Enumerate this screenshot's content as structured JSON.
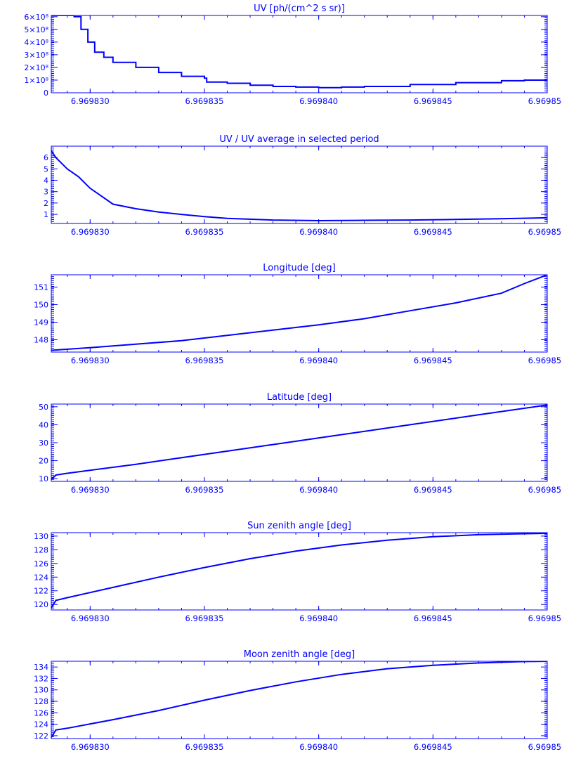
{
  "colors": {
    "line": "#0000ff",
    "background": "#ffffff"
  },
  "x_tick_labels": [
    "6.969830",
    "6.969835",
    "6.969840",
    "6.969845",
    "6.969850"
  ],
  "chart_data": [
    {
      "type": "line",
      "title": "UV [ph/(cm^2 s sr)]",
      "xlim": [
        6.9698283,
        6.96985
      ],
      "ylim": [
        0,
        610000000.0
      ],
      "ytick_values": [
        0,
        100000000.0,
        200000000.0,
        300000000.0,
        400000000.0,
        500000000.0,
        600000000.0
      ],
      "ytick_labels": [
        "0",
        "1×10⁸",
        "2×10⁸",
        "3×10⁸",
        "4×10⁸",
        "5×10⁸",
        "6×10⁸"
      ],
      "step": true,
      "series": [
        {
          "x": [
            6.9698283,
            6.9698293,
            6.9698296,
            6.9698299,
            6.9698302,
            6.9698306,
            6.969831,
            6.969832,
            6.969833,
            6.969834,
            6.969835,
            6.9698351,
            6.969836,
            6.969837,
            6.969838,
            6.969839,
            6.96984,
            6.969841,
            6.969842,
            6.969844,
            6.969846,
            6.969848,
            6.969849,
            6.96985
          ],
          "y": [
            610000000.0,
            600000000.0,
            500000000.0,
            400000000.0,
            320000000.0,
            280000000.0,
            240000000.0,
            200000000.0,
            160000000.0,
            130000000.0,
            115000000.0,
            85000000.0,
            75000000.0,
            60000000.0,
            50000000.0,
            45000000.0,
            40000000.0,
            45000000.0,
            50000000.0,
            65000000.0,
            80000000.0,
            95000000.0,
            100000000.0,
            110000000.0
          ]
        }
      ]
    },
    {
      "type": "line",
      "title": "UV / UV average in selected period",
      "xlim": [
        6.9698283,
        6.96985
      ],
      "ylim": [
        0.2,
        7
      ],
      "ytick_values": [
        1,
        2,
        3,
        4,
        5,
        6
      ],
      "ytick_labels": [
        "1",
        "2",
        "3",
        "4",
        "5",
        "6"
      ],
      "series": [
        {
          "x": [
            6.9698283,
            6.9698285,
            6.969829,
            6.9698295,
            6.96983,
            6.9698305,
            6.969831,
            6.969832,
            6.969833,
            6.969834,
            6.969835,
            6.969836,
            6.969838,
            6.96984,
            6.969842,
            6.969844,
            6.969846,
            6.969848,
            6.96985
          ],
          "y": [
            6.6,
            6.0,
            5.0,
            4.3,
            3.3,
            2.6,
            1.9,
            1.5,
            1.2,
            1.0,
            0.8,
            0.65,
            0.5,
            0.45,
            0.48,
            0.5,
            0.55,
            0.62,
            0.7
          ]
        }
      ]
    },
    {
      "type": "line",
      "title": "Longitude [deg]",
      "xlim": [
        6.9698283,
        6.96985
      ],
      "ylim": [
        147.3,
        151.7
      ],
      "ytick_values": [
        148,
        149,
        150,
        151
      ],
      "ytick_labels": [
        "148",
        "149",
        "150",
        "151"
      ],
      "series": [
        {
          "x": [
            6.9698283,
            6.96983,
            6.969832,
            6.969834,
            6.969836,
            6.969838,
            6.96984,
            6.969842,
            6.969844,
            6.969846,
            6.969848,
            6.969849,
            6.96985
          ],
          "y": [
            147.4,
            147.55,
            147.75,
            147.95,
            148.25,
            148.55,
            148.85,
            149.2,
            149.65,
            150.1,
            150.65,
            151.2,
            151.7
          ]
        }
      ]
    },
    {
      "type": "line",
      "title": "Latitude [deg]",
      "xlim": [
        6.9698283,
        6.96985
      ],
      "ylim": [
        8.5,
        51.5
      ],
      "ytick_values": [
        10,
        20,
        30,
        40,
        50
      ],
      "ytick_labels": [
        "10",
        "20",
        "30",
        "40",
        "50"
      ],
      "series": [
        {
          "x": [
            6.9698283,
            6.9698285,
            6.969829,
            6.969832,
            6.969835,
            6.969838,
            6.969841,
            6.969844,
            6.969847,
            6.96985
          ],
          "y": [
            9.5,
            12,
            13,
            18,
            23.5,
            29,
            34.5,
            40,
            45.5,
            51
          ]
        }
      ]
    },
    {
      "type": "line",
      "title": "Sun zenith angle [deg]",
      "xlim": [
        6.9698283,
        6.96985
      ],
      "ylim": [
        119.2,
        130.5
      ],
      "ytick_values": [
        120,
        122,
        124,
        126,
        128,
        130
      ],
      "ytick_labels": [
        "120",
        "122",
        "124",
        "126",
        "128",
        "130"
      ],
      "series": [
        {
          "x": [
            6.9698283,
            6.9698285,
            6.969829,
            6.969831,
            6.969833,
            6.969835,
            6.969837,
            6.969839,
            6.969841,
            6.969843,
            6.969845,
            6.969847,
            6.969849,
            6.96985
          ],
          "y": [
            119.5,
            120.6,
            121.0,
            122.5,
            124.0,
            125.4,
            126.7,
            127.8,
            128.7,
            129.4,
            129.9,
            130.2,
            130.35,
            130.4
          ]
        }
      ]
    },
    {
      "type": "line",
      "title": "Moon zenith angle [deg]",
      "xlim": [
        6.9698283,
        6.96985
      ],
      "ylim": [
        121.5,
        135.0
      ],
      "ytick_values": [
        122,
        124,
        126,
        128,
        130,
        132,
        134
      ],
      "ytick_labels": [
        "122",
        "124",
        "126",
        "128",
        "130",
        "132",
        "134"
      ],
      "series": [
        {
          "x": [
            6.9698283,
            6.9698285,
            6.969829,
            6.969831,
            6.969833,
            6.969835,
            6.969837,
            6.969839,
            6.969841,
            6.969843,
            6.969845,
            6.969847,
            6.969849,
            6.96985
          ],
          "y": [
            121.7,
            123.0,
            123.3,
            124.8,
            126.4,
            128.2,
            129.9,
            131.4,
            132.7,
            133.7,
            134.3,
            134.7,
            134.95,
            135.0
          ]
        }
      ]
    }
  ]
}
